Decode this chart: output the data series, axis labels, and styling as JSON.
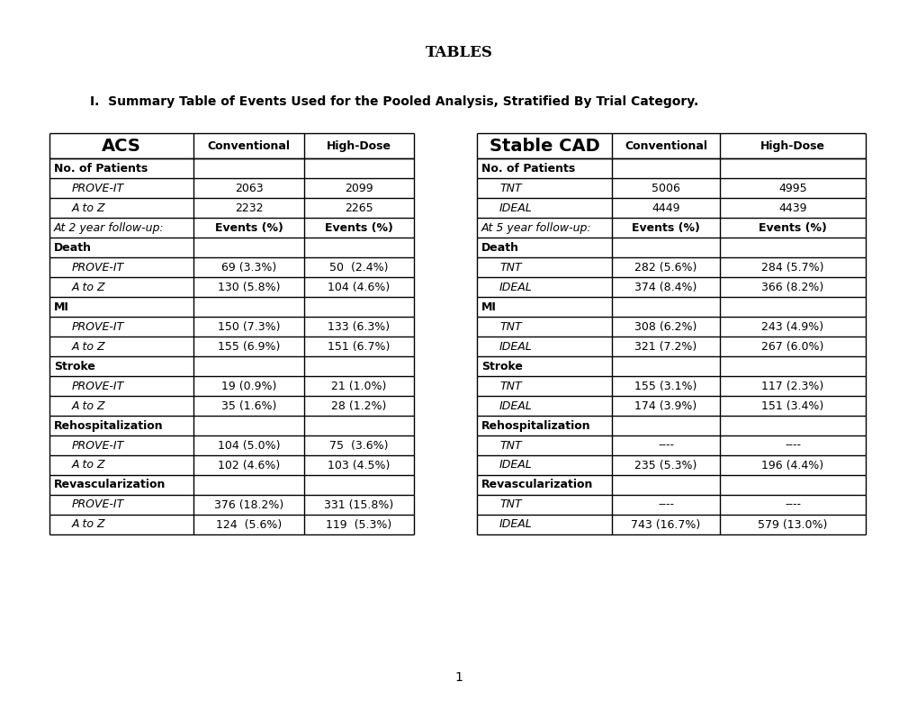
{
  "title": "TABLES",
  "subtitle": "I.  Summary Table of Events Used for the Pooled Analysis, Stratified By Trial Category.",
  "page_number": "1",
  "acs_header": "ACS",
  "stable_cad_header": "Stable CAD",
  "col_headers": [
    "Conventional",
    "High-Dose"
  ],
  "acs_rows": [
    {
      "type": "section",
      "label": "No. of Patients"
    },
    {
      "type": "data_italic",
      "label": "PROVE-IT",
      "conv": "2063",
      "high": "2099"
    },
    {
      "type": "data_italic",
      "label": "A to Z",
      "conv": "2232",
      "high": "2265"
    },
    {
      "type": "followup",
      "label": "At 2 year follow-up:",
      "conv": "Events (%)",
      "high": "Events (%)"
    },
    {
      "type": "section",
      "label": "Death"
    },
    {
      "type": "data_italic",
      "label": "PROVE-IT",
      "conv": "69 (3.3%)",
      "high": "50  (2.4%)"
    },
    {
      "type": "data_italic",
      "label": "A to Z",
      "conv": "130 (5.8%)",
      "high": "104 (4.6%)"
    },
    {
      "type": "section",
      "label": "MI"
    },
    {
      "type": "data_italic",
      "label": "PROVE-IT",
      "conv": "150 (7.3%)",
      "high": "133 (6.3%)"
    },
    {
      "type": "data_italic",
      "label": "A to Z",
      "conv": "155 (6.9%)",
      "high": "151 (6.7%)"
    },
    {
      "type": "section",
      "label": "Stroke"
    },
    {
      "type": "data_italic",
      "label": "PROVE-IT",
      "conv": "19 (0.9%)",
      "high": "21 (1.0%)"
    },
    {
      "type": "data_italic",
      "label": "A to Z",
      "conv": "35 (1.6%)",
      "high": "28 (1.2%)"
    },
    {
      "type": "section",
      "label": "Rehospitalization"
    },
    {
      "type": "data_italic",
      "label": "PROVE-IT",
      "conv": "104 (5.0%)",
      "high": "75  (3.6%)"
    },
    {
      "type": "data_italic",
      "label": "A to Z",
      "conv": "102 (4.6%)",
      "high": "103 (4.5%)"
    },
    {
      "type": "section",
      "label": "Revascularization"
    },
    {
      "type": "data_italic",
      "label": "PROVE-IT",
      "conv": "376 (18.2%)",
      "high": "331 (15.8%)"
    },
    {
      "type": "data_italic",
      "label": "A to Z",
      "conv": "124  (5.6%)",
      "high": "119  (5.3%)"
    }
  ],
  "cad_rows": [
    {
      "type": "section",
      "label": "No. of Patients"
    },
    {
      "type": "data_italic",
      "label": "TNT",
      "conv": "5006",
      "high": "4995"
    },
    {
      "type": "data_italic",
      "label": "IDEAL",
      "conv": "4449",
      "high": "4439"
    },
    {
      "type": "followup",
      "label": "At 5 year follow-up:",
      "conv": "Events (%)",
      "high": "Events (%)"
    },
    {
      "type": "section",
      "label": "Death"
    },
    {
      "type": "data_italic",
      "label": "TNT",
      "conv": "282 (5.6%)",
      "high": "284 (5.7%)"
    },
    {
      "type": "data_italic",
      "label": "IDEAL",
      "conv": "374 (8.4%)",
      "high": "366 (8.2%)"
    },
    {
      "type": "section",
      "label": "MI"
    },
    {
      "type": "data_italic",
      "label": "TNT",
      "conv": "308 (6.2%)",
      "high": "243 (4.9%)"
    },
    {
      "type": "data_italic",
      "label": "IDEAL",
      "conv": "321 (7.2%)",
      "high": "267 (6.0%)"
    },
    {
      "type": "section",
      "label": "Stroke"
    },
    {
      "type": "data_italic",
      "label": "TNT",
      "conv": "155 (3.1%)",
      "high": "117 (2.3%)"
    },
    {
      "type": "data_italic",
      "label": "IDEAL",
      "conv": "174 (3.9%)",
      "high": "151 (3.4%)"
    },
    {
      "type": "section",
      "label": "Rehospitalization"
    },
    {
      "type": "data_italic",
      "label": "TNT",
      "conv": "----",
      "high": "----"
    },
    {
      "type": "data_italic",
      "label": "IDEAL",
      "conv": "235 (5.3%)",
      "high": "196 (4.4%)"
    },
    {
      "type": "section",
      "label": "Revascularization"
    },
    {
      "type": "data_italic",
      "label": "TNT",
      "conv": "----",
      "high": "----"
    },
    {
      "type": "data_italic",
      "label": "IDEAL",
      "conv": "743 (16.7%)",
      "high": "579 (13.0%)"
    }
  ],
  "bg_color": "#ffffff",
  "text_color": "#000000",
  "border_color": "#000000"
}
